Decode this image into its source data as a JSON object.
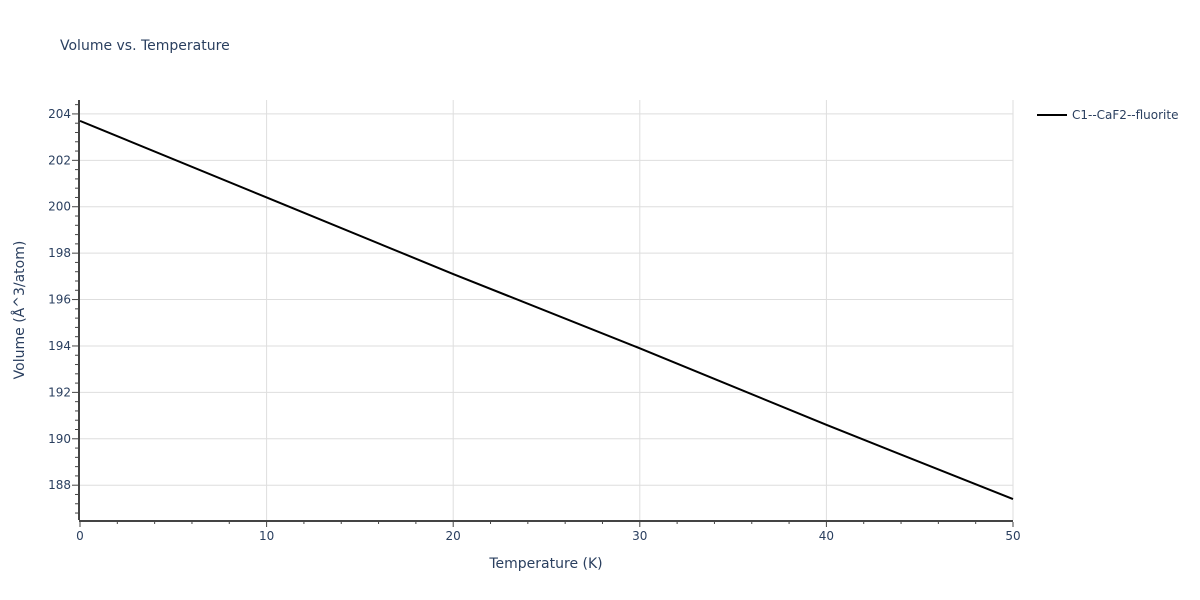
{
  "chart_data": {
    "type": "line",
    "title": "Volume vs. Temperature",
    "xlabel": "Temperature (K)",
    "ylabel": "Volume (Å^3/atom)",
    "xlim": [
      0,
      50
    ],
    "ylim": [
      186.5,
      204.6
    ],
    "x_ticks": [
      0,
      10,
      20,
      30,
      40,
      50
    ],
    "y_ticks": [
      188,
      190,
      192,
      194,
      196,
      198,
      200,
      202,
      204
    ],
    "grid": true,
    "legend_position": "top-right",
    "series": [
      {
        "name": "C1--CaF2--fluorite",
        "color": "#000000",
        "x": [
          0,
          10,
          20,
          30,
          40,
          50
        ],
        "y": [
          203.7,
          200.4,
          197.1,
          193.9,
          190.6,
          187.4
        ]
      }
    ]
  }
}
